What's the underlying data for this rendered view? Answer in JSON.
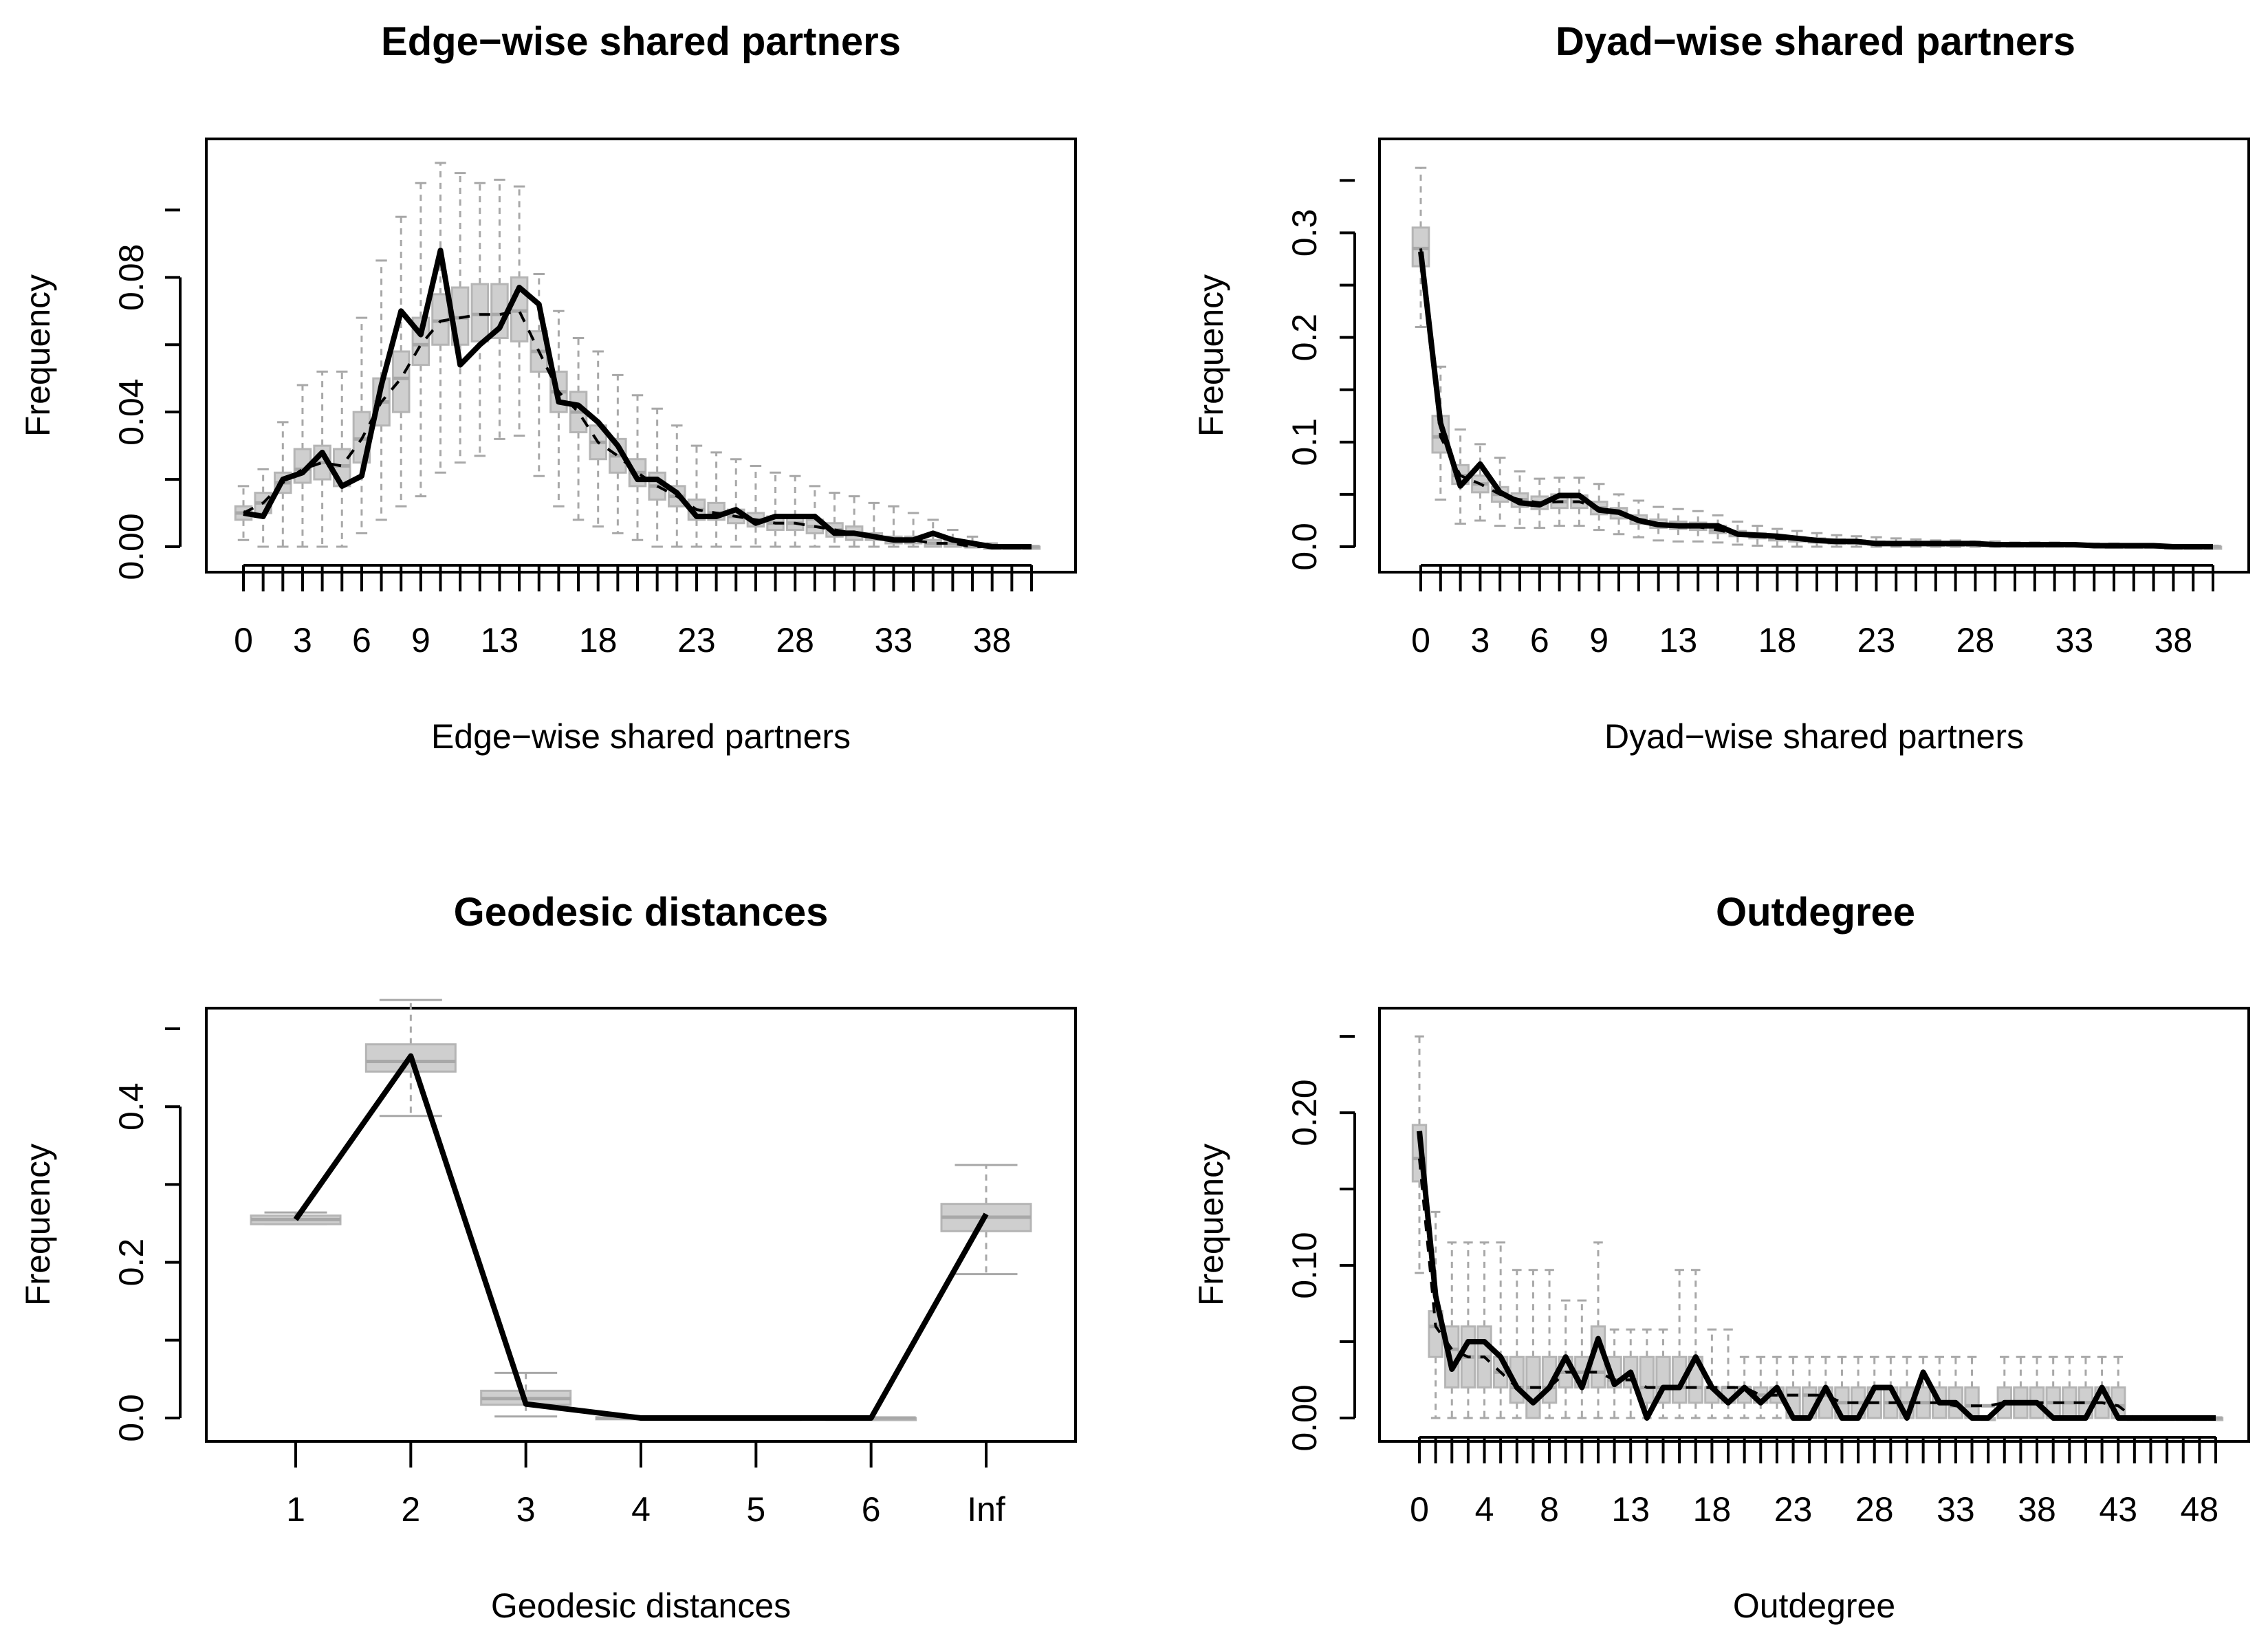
{
  "chart_data": [
    {
      "type": "boxplot",
      "title": "Edge−wise shared partners",
      "xlabel": "Edge−wise shared partners",
      "ylabel": "Frequency",
      "y_ticks": [
        0.0,
        0.04,
        0.08
      ],
      "y_tick_labels": [
        "0.00",
        "0.04",
        "0.08"
      ],
      "ylim": [
        0,
        0.115
      ],
      "x_categories": [
        0,
        1,
        2,
        3,
        4,
        5,
        6,
        7,
        8,
        9,
        10,
        11,
        12,
        13,
        14,
        15,
        16,
        17,
        18,
        19,
        20,
        21,
        22,
        23,
        24,
        25,
        26,
        27,
        28,
        29,
        30,
        31,
        32,
        33,
        34,
        35,
        36,
        37,
        38,
        39,
        40
      ],
      "x_tick_labels": [
        "0",
        "3",
        "6",
        "9",
        "13",
        "18",
        "23",
        "28",
        "33",
        "38"
      ],
      "x_tick_label_positions": [
        0,
        3,
        6,
        9,
        13,
        18,
        23,
        28,
        33,
        38
      ],
      "observed": [
        0.01,
        0.009,
        0.02,
        0.022,
        0.028,
        0.018,
        0.021,
        0.048,
        0.07,
        0.063,
        0.088,
        0.054,
        0.06,
        0.065,
        0.077,
        0.072,
        0.043,
        0.042,
        0.037,
        0.03,
        0.02,
        0.02,
        0.016,
        0.009,
        0.009,
        0.011,
        0.007,
        0.009,
        0.009,
        0.009,
        0.004,
        0.004,
        0.003,
        0.002,
        0.002,
        0.004,
        0.002,
        0.001,
        0.0,
        0.0,
        0.0
      ],
      "sim_median": [
        0.01,
        0.013,
        0.019,
        0.023,
        0.025,
        0.024,
        0.032,
        0.043,
        0.05,
        0.06,
        0.067,
        0.068,
        0.069,
        0.069,
        0.07,
        0.058,
        0.046,
        0.04,
        0.031,
        0.027,
        0.022,
        0.018,
        0.015,
        0.011,
        0.01,
        0.009,
        0.008,
        0.007,
        0.007,
        0.006,
        0.005,
        0.004,
        0.003,
        0.002,
        0.002,
        0.001,
        0.001,
        0.0,
        0.0,
        0.0,
        0.0
      ],
      "sim_q1": [
        0.008,
        0.01,
        0.016,
        0.019,
        0.02,
        0.018,
        0.025,
        0.036,
        0.04,
        0.054,
        0.06,
        0.06,
        0.061,
        0.062,
        0.061,
        0.052,
        0.04,
        0.034,
        0.026,
        0.022,
        0.018,
        0.014,
        0.012,
        0.008,
        0.008,
        0.007,
        0.006,
        0.005,
        0.005,
        0.004,
        0.003,
        0.002,
        0.002,
        0.001,
        0.001,
        0.0,
        0.0,
        0.0,
        0.0,
        0.0,
        0.0
      ],
      "sim_q3": [
        0.012,
        0.016,
        0.022,
        0.029,
        0.03,
        0.029,
        0.04,
        0.05,
        0.058,
        0.068,
        0.075,
        0.077,
        0.078,
        0.078,
        0.08,
        0.064,
        0.052,
        0.046,
        0.036,
        0.032,
        0.026,
        0.022,
        0.018,
        0.014,
        0.013,
        0.011,
        0.01,
        0.009,
        0.009,
        0.008,
        0.007,
        0.006,
        0.004,
        0.003,
        0.003,
        0.002,
        0.002,
        0.001,
        0.0,
        0.0,
        0.0
      ],
      "sim_min": [
        0.002,
        0.0,
        0.0,
        0.0,
        0.0,
        0.0,
        0.004,
        0.008,
        0.012,
        0.015,
        0.022,
        0.025,
        0.027,
        0.032,
        0.033,
        0.021,
        0.012,
        0.008,
        0.006,
        0.004,
        0.002,
        0.0,
        0.0,
        0.0,
        0.0,
        0.0,
        0.0,
        0.0,
        0.0,
        0.0,
        0.0,
        0.0,
        0.0,
        0.0,
        0.0,
        0.0,
        0.0,
        0.0,
        0.0,
        0.0,
        0.0
      ],
      "sim_max": [
        0.018,
        0.023,
        0.037,
        0.048,
        0.052,
        0.052,
        0.068,
        0.085,
        0.098,
        0.108,
        0.114,
        0.111,
        0.108,
        0.109,
        0.107,
        0.081,
        0.07,
        0.062,
        0.058,
        0.051,
        0.045,
        0.041,
        0.036,
        0.03,
        0.028,
        0.026,
        0.024,
        0.022,
        0.021,
        0.018,
        0.016,
        0.015,
        0.013,
        0.012,
        0.01,
        0.008,
        0.005,
        0.003,
        0.001,
        0.0,
        0.0
      ]
    },
    {
      "type": "boxplot",
      "title": "Dyad−wise shared partners",
      "xlabel": "Dyad−wise shared partners",
      "ylabel": "Frequency",
      "y_ticks": [
        0.0,
        0.1,
        0.2,
        0.3
      ],
      "y_tick_labels": [
        "0.0",
        "0.1",
        "0.2",
        "0.3"
      ],
      "ylim": [
        0,
        0.37
      ],
      "x_categories": [
        0,
        1,
        2,
        3,
        4,
        5,
        6,
        7,
        8,
        9,
        10,
        11,
        12,
        13,
        14,
        15,
        16,
        17,
        18,
        19,
        20,
        21,
        22,
        23,
        24,
        25,
        26,
        27,
        28,
        29,
        30,
        31,
        32,
        33,
        34,
        35,
        36,
        37,
        38,
        39,
        40
      ],
      "x_tick_labels": [
        "0",
        "3",
        "6",
        "9",
        "13",
        "18",
        "23",
        "28",
        "33",
        "38"
      ],
      "x_tick_label_positions": [
        0,
        3,
        6,
        9,
        13,
        18,
        23,
        28,
        33,
        38
      ],
      "observed": [
        0.282,
        0.118,
        0.058,
        0.079,
        0.052,
        0.042,
        0.04,
        0.049,
        0.049,
        0.035,
        0.033,
        0.025,
        0.021,
        0.02,
        0.02,
        0.02,
        0.012,
        0.011,
        0.01,
        0.008,
        0.006,
        0.005,
        0.005,
        0.003,
        0.003,
        0.003,
        0.003,
        0.003,
        0.003,
        0.002,
        0.002,
        0.002,
        0.002,
        0.002,
        0.001,
        0.001,
        0.001,
        0.001,
        0.0,
        0.0,
        0.0
      ],
      "sim_median": [
        0.285,
        0.105,
        0.068,
        0.06,
        0.05,
        0.045,
        0.042,
        0.043,
        0.043,
        0.037,
        0.032,
        0.026,
        0.022,
        0.02,
        0.019,
        0.016,
        0.012,
        0.01,
        0.008,
        0.007,
        0.006,
        0.005,
        0.004,
        0.003,
        0.003,
        0.003,
        0.002,
        0.002,
        0.002,
        0.002,
        0.001,
        0.001,
        0.001,
        0.001,
        0.001,
        0.001,
        0.0,
        0.0,
        0.0,
        0.0,
        0.0
      ],
      "sim_q1": [
        0.268,
        0.09,
        0.06,
        0.052,
        0.043,
        0.038,
        0.036,
        0.037,
        0.037,
        0.031,
        0.027,
        0.022,
        0.018,
        0.017,
        0.016,
        0.013,
        0.01,
        0.008,
        0.006,
        0.005,
        0.004,
        0.003,
        0.003,
        0.002,
        0.002,
        0.002,
        0.001,
        0.001,
        0.001,
        0.001,
        0.0,
        0.0,
        0.0,
        0.0,
        0.0,
        0.0,
        0.0,
        0.0,
        0.0,
        0.0,
        0.0
      ],
      "sim_q3": [
        0.305,
        0.125,
        0.078,
        0.068,
        0.057,
        0.051,
        0.048,
        0.05,
        0.049,
        0.043,
        0.037,
        0.03,
        0.026,
        0.024,
        0.023,
        0.02,
        0.015,
        0.013,
        0.01,
        0.009,
        0.008,
        0.007,
        0.006,
        0.005,
        0.004,
        0.004,
        0.003,
        0.003,
        0.003,
        0.003,
        0.002,
        0.002,
        0.002,
        0.002,
        0.002,
        0.001,
        0.001,
        0.001,
        0.0,
        0.0,
        0.0
      ],
      "sim_min": [
        0.21,
        0.045,
        0.022,
        0.025,
        0.02,
        0.018,
        0.018,
        0.02,
        0.02,
        0.016,
        0.012,
        0.009,
        0.006,
        0.005,
        0.005,
        0.004,
        0.002,
        0.001,
        0.0,
        0.0,
        0.0,
        0.0,
        0.0,
        0.0,
        0.0,
        0.0,
        0.0,
        0.0,
        0.0,
        0.0,
        0.0,
        0.0,
        0.0,
        0.0,
        0.0,
        0.0,
        0.0,
        0.0,
        0.0,
        0.0,
        0.0
      ],
      "sim_max": [
        0.362,
        0.172,
        0.112,
        0.098,
        0.085,
        0.072,
        0.065,
        0.066,
        0.066,
        0.06,
        0.05,
        0.044,
        0.038,
        0.036,
        0.034,
        0.03,
        0.024,
        0.02,
        0.017,
        0.015,
        0.013,
        0.011,
        0.01,
        0.009,
        0.008,
        0.007,
        0.006,
        0.006,
        0.005,
        0.005,
        0.004,
        0.004,
        0.004,
        0.003,
        0.003,
        0.003,
        0.002,
        0.002,
        0.001,
        0.001,
        0.001
      ]
    },
    {
      "type": "boxplot",
      "title": "Geodesic distances",
      "xlabel": "Geodesic distances",
      "ylabel": "Frequency",
      "y_ticks": [
        0.0,
        0.2,
        0.4
      ],
      "y_tick_labels": [
        "0.0",
        "0.2",
        "0.4"
      ],
      "ylim": [
        0,
        0.5
      ],
      "x_categories": [
        "1",
        "2",
        "3",
        "4",
        "5",
        "6",
        "Inf"
      ],
      "x_tick_labels": [
        "1",
        "2",
        "3",
        "4",
        "5",
        "6",
        "Inf"
      ],
      "x_tick_label_positions": [
        "1",
        "2",
        "3",
        "4",
        "5",
        "6",
        "Inf"
      ],
      "observed": [
        0.255,
        0.465,
        0.018,
        0.0,
        0.0,
        0.0,
        0.262
      ],
      "sim_median": [
        0.255,
        0.458,
        0.025,
        0.0,
        0.0,
        0.0,
        0.258
      ],
      "sim_q1": [
        0.249,
        0.445,
        0.017,
        0.0,
        0.0,
        0.0,
        0.24
      ],
      "sim_q3": [
        0.26,
        0.48,
        0.035,
        0.001,
        0.0,
        0.0,
        0.275
      ],
      "sim_min": [
        0.249,
        0.388,
        0.002,
        0.0,
        0.0,
        0.0,
        0.185
      ],
      "sim_max": [
        0.264,
        0.537,
        0.058,
        0.002,
        0.0,
        0.0,
        0.325
      ]
    },
    {
      "type": "boxplot",
      "title": "Outdegree",
      "xlabel": "Outdegree",
      "ylabel": "Frequency",
      "y_ticks": [
        0.0,
        0.1,
        0.2
      ],
      "y_tick_labels": [
        "0.00",
        "0.10",
        "0.20"
      ],
      "ylim": [
        0,
        0.255
      ],
      "x_categories": [
        0,
        1,
        2,
        3,
        4,
        5,
        6,
        7,
        8,
        9,
        10,
        11,
        12,
        13,
        14,
        15,
        16,
        17,
        18,
        19,
        20,
        21,
        22,
        23,
        24,
        25,
        26,
        27,
        28,
        29,
        30,
        31,
        32,
        33,
        34,
        35,
        36,
        37,
        38,
        39,
        40,
        41,
        42,
        43,
        44,
        45,
        46,
        47,
        48,
        49
      ],
      "x_tick_labels": [
        "0",
        "4",
        "8",
        "13",
        "18",
        "23",
        "28",
        "33",
        "38",
        "43",
        "48"
      ],
      "x_tick_label_positions": [
        0,
        4,
        8,
        13,
        18,
        23,
        28,
        33,
        38,
        43,
        48
      ],
      "observed": [
        0.188,
        0.08,
        0.032,
        0.05,
        0.05,
        0.04,
        0.02,
        0.01,
        0.02,
        0.04,
        0.02,
        0.052,
        0.022,
        0.03,
        0.0,
        0.02,
        0.02,
        0.04,
        0.02,
        0.01,
        0.02,
        0.01,
        0.02,
        0.0,
        0.0,
        0.02,
        0.0,
        0.0,
        0.02,
        0.02,
        0.0,
        0.03,
        0.01,
        0.01,
        0.0,
        0.0,
        0.01,
        0.01,
        0.01,
        0.0,
        0.0,
        0.0,
        0.02,
        0.0,
        0.0,
        0.0,
        0.0,
        0.0,
        0.0,
        0.0
      ],
      "sim_median": [
        0.17,
        0.06,
        0.045,
        0.04,
        0.04,
        0.03,
        0.02,
        0.02,
        0.02,
        0.03,
        0.03,
        0.03,
        0.025,
        0.025,
        0.02,
        0.02,
        0.02,
        0.02,
        0.02,
        0.02,
        0.02,
        0.015,
        0.015,
        0.015,
        0.015,
        0.015,
        0.01,
        0.01,
        0.01,
        0.01,
        0.01,
        0.01,
        0.01,
        0.008,
        0.008,
        0.008,
        0.01,
        0.01,
        0.01,
        0.01,
        0.01,
        0.01,
        0.01,
        0.008,
        0.0,
        0.0,
        0.0,
        0.0,
        0.0,
        0.0
      ],
      "sim_q1": [
        0.155,
        0.04,
        0.02,
        0.02,
        0.02,
        0.02,
        0.01,
        0.0,
        0.01,
        0.02,
        0.02,
        0.02,
        0.02,
        0.02,
        0.01,
        0.01,
        0.01,
        0.01,
        0.01,
        0.01,
        0.01,
        0.01,
        0.01,
        0.0,
        0.0,
        0.0,
        0.0,
        0.0,
        0.0,
        0.0,
        0.0,
        0.0,
        0.0,
        0.0,
        0.0,
        0.0,
        0.0,
        0.0,
        0.0,
        0.0,
        0.0,
        0.0,
        0.0,
        0.0,
        0.0,
        0.0,
        0.0,
        0.0,
        0.0,
        0.0
      ],
      "sim_q3": [
        0.192,
        0.07,
        0.06,
        0.06,
        0.06,
        0.04,
        0.04,
        0.04,
        0.04,
        0.04,
        0.04,
        0.06,
        0.04,
        0.04,
        0.04,
        0.04,
        0.04,
        0.04,
        0.02,
        0.02,
        0.02,
        0.02,
        0.02,
        0.02,
        0.02,
        0.02,
        0.02,
        0.02,
        0.02,
        0.02,
        0.02,
        0.02,
        0.02,
        0.02,
        0.02,
        0.0,
        0.02,
        0.02,
        0.02,
        0.02,
        0.02,
        0.02,
        0.02,
        0.02,
        0.0,
        0.0,
        0.0,
        0.0,
        0.0,
        0.0
      ],
      "sim_min": [
        0.095,
        0.0,
        0.0,
        0.0,
        0.0,
        0.0,
        0.0,
        0.0,
        0.0,
        0.0,
        0.0,
        0.0,
        0.0,
        0.0,
        0.0,
        0.0,
        0.0,
        0.0,
        0.0,
        0.0,
        0.0,
        0.0,
        0.0,
        0.0,
        0.0,
        0.0,
        0.0,
        0.0,
        0.0,
        0.0,
        0.0,
        0.0,
        0.0,
        0.0,
        0.0,
        0.0,
        0.0,
        0.0,
        0.0,
        0.0,
        0.0,
        0.0,
        0.0,
        0.0,
        0.0,
        0.0,
        0.0,
        0.0,
        0.0,
        0.0
      ],
      "sim_max": [
        0.25,
        0.135,
        0.115,
        0.115,
        0.115,
        0.115,
        0.097,
        0.097,
        0.097,
        0.077,
        0.077,
        0.115,
        0.058,
        0.058,
        0.058,
        0.058,
        0.097,
        0.097,
        0.058,
        0.058,
        0.04,
        0.04,
        0.04,
        0.04,
        0.04,
        0.04,
        0.04,
        0.04,
        0.04,
        0.04,
        0.04,
        0.04,
        0.04,
        0.04,
        0.04,
        0.0,
        0.04,
        0.04,
        0.04,
        0.04,
        0.04,
        0.04,
        0.04,
        0.04,
        0.0,
        0.0,
        0.0,
        0.0,
        0.0,
        0.0
      ]
    }
  ]
}
